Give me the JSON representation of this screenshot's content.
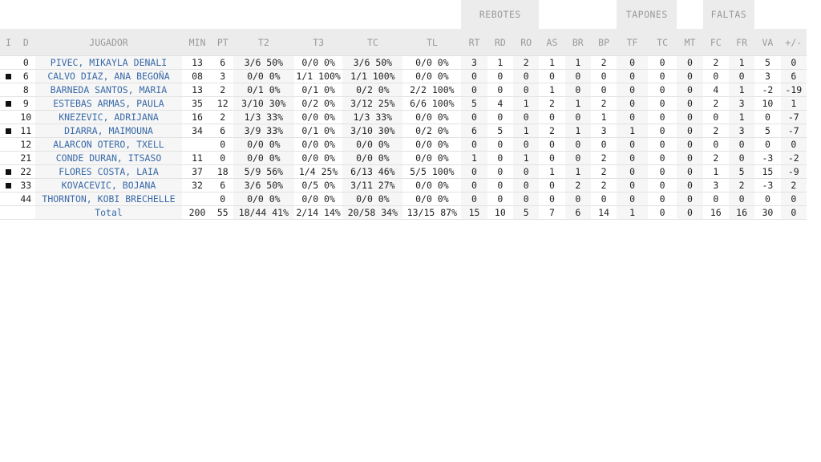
{
  "groups": {
    "rebotes": "REBOTES",
    "tapones": "TAPONES",
    "faltas": "FALTAS"
  },
  "columns": [
    "I",
    "D",
    "JUGADOR",
    "MIN",
    "PT",
    "T2",
    "T3",
    "TC",
    "TL",
    "RT",
    "RD",
    "RO",
    "AS",
    "BR",
    "BP",
    "TF",
    "TC",
    "MT",
    "FC",
    "FR",
    "VA",
    "+/-"
  ],
  "rows": [
    {
      "starter": false,
      "dorsal": "0",
      "name": "PIVEC, MIKAYLA DENALI",
      "min": "13",
      "pt": "6",
      "t2": "3/6 50%",
      "t3": "0/0 0%",
      "tc": "3/6 50%",
      "tl": "0/0 0%",
      "rt": "3",
      "rd": "1",
      "ro": "2",
      "as": "1",
      "br": "1",
      "bp": "2",
      "tf": "0",
      "tcb": "0",
      "mt": "0",
      "fc": "2",
      "fr": "1",
      "va": "5",
      "pm": "0"
    },
    {
      "starter": true,
      "dorsal": "6",
      "name": "CALVO DIAZ, ANA BEGOÑA",
      "min": "08",
      "pt": "3",
      "t2": "0/0 0%",
      "t3": "1/1 100%",
      "tc": "1/1 100%",
      "tl": "0/0 0%",
      "rt": "0",
      "rd": "0",
      "ro": "0",
      "as": "0",
      "br": "0",
      "bp": "0",
      "tf": "0",
      "tcb": "0",
      "mt": "0",
      "fc": "0",
      "fr": "0",
      "va": "3",
      "pm": "6"
    },
    {
      "starter": false,
      "dorsal": "8",
      "name": "BARNEDA SANTOS, MARIA",
      "min": "13",
      "pt": "2",
      "t2": "0/1 0%",
      "t3": "0/1 0%",
      "tc": "0/2 0%",
      "tl": "2/2 100%",
      "rt": "0",
      "rd": "0",
      "ro": "0",
      "as": "1",
      "br": "0",
      "bp": "0",
      "tf": "0",
      "tcb": "0",
      "mt": "0",
      "fc": "4",
      "fr": "1",
      "va": "-2",
      "pm": "-19"
    },
    {
      "starter": true,
      "dorsal": "9",
      "name": "ESTEBAS ARMAS, PAULA",
      "min": "35",
      "pt": "12",
      "t2": "3/10 30%",
      "t3": "0/2 0%",
      "tc": "3/12 25%",
      "tl": "6/6 100%",
      "rt": "5",
      "rd": "4",
      "ro": "1",
      "as": "2",
      "br": "1",
      "bp": "2",
      "tf": "0",
      "tcb": "0",
      "mt": "0",
      "fc": "2",
      "fr": "3",
      "va": "10",
      "pm": "1"
    },
    {
      "starter": false,
      "dorsal": "10",
      "name": "KNEZEVIC, ADRIJANA",
      "min": "16",
      "pt": "2",
      "t2": "1/3 33%",
      "t3": "0/0 0%",
      "tc": "1/3 33%",
      "tl": "0/0 0%",
      "rt": "0",
      "rd": "0",
      "ro": "0",
      "as": "0",
      "br": "0",
      "bp": "1",
      "tf": "0",
      "tcb": "0",
      "mt": "0",
      "fc": "0",
      "fr": "1",
      "va": "0",
      "pm": "-7"
    },
    {
      "starter": true,
      "dorsal": "11",
      "name": "DIARRA, MAIMOUNA",
      "min": "34",
      "pt": "6",
      "t2": "3/9 33%",
      "t3": "0/1 0%",
      "tc": "3/10 30%",
      "tl": "0/2 0%",
      "rt": "6",
      "rd": "5",
      "ro": "1",
      "as": "2",
      "br": "1",
      "bp": "3",
      "tf": "1",
      "tcb": "0",
      "mt": "0",
      "fc": "2",
      "fr": "3",
      "va": "5",
      "pm": "-7"
    },
    {
      "starter": false,
      "dorsal": "12",
      "name": "ALARCON OTERO, TXELL",
      "min": "",
      "pt": "0",
      "t2": "0/0 0%",
      "t3": "0/0 0%",
      "tc": "0/0 0%",
      "tl": "0/0 0%",
      "rt": "0",
      "rd": "0",
      "ro": "0",
      "as": "0",
      "br": "0",
      "bp": "0",
      "tf": "0",
      "tcb": "0",
      "mt": "0",
      "fc": "0",
      "fr": "0",
      "va": "0",
      "pm": "0"
    },
    {
      "starter": false,
      "dorsal": "21",
      "name": "CONDE DURAN, ITSASO",
      "min": "11",
      "pt": "0",
      "t2": "0/0 0%",
      "t3": "0/0 0%",
      "tc": "0/0 0%",
      "tl": "0/0 0%",
      "rt": "1",
      "rd": "0",
      "ro": "1",
      "as": "0",
      "br": "0",
      "bp": "2",
      "tf": "0",
      "tcb": "0",
      "mt": "0",
      "fc": "2",
      "fr": "0",
      "va": "-3",
      "pm": "-2"
    },
    {
      "starter": true,
      "dorsal": "22",
      "name": "FLORES COSTA, LAIA",
      "min": "37",
      "pt": "18",
      "t2": "5/9 56%",
      "t3": "1/4 25%",
      "tc": "6/13 46%",
      "tl": "5/5 100%",
      "rt": "0",
      "rd": "0",
      "ro": "0",
      "as": "1",
      "br": "1",
      "bp": "2",
      "tf": "0",
      "tcb": "0",
      "mt": "0",
      "fc": "1",
      "fr": "5",
      "va": "15",
      "pm": "-9"
    },
    {
      "starter": true,
      "dorsal": "33",
      "name": "KOVACEVIC, BOJANA",
      "min": "32",
      "pt": "6",
      "t2": "3/6 50%",
      "t3": "0/5 0%",
      "tc": "3/11 27%",
      "tl": "0/0 0%",
      "rt": "0",
      "rd": "0",
      "ro": "0",
      "as": "0",
      "br": "2",
      "bp": "2",
      "tf": "0",
      "tcb": "0",
      "mt": "0",
      "fc": "3",
      "fr": "2",
      "va": "-3",
      "pm": "2"
    },
    {
      "starter": false,
      "dorsal": "44",
      "name": "THORNTON, KOBI BRECHELLE",
      "min": "",
      "pt": "0",
      "t2": "0/0 0%",
      "t3": "0/0 0%",
      "tc": "0/0 0%",
      "tl": "0/0 0%",
      "rt": "0",
      "rd": "0",
      "ro": "0",
      "as": "0",
      "br": "0",
      "bp": "0",
      "tf": "0",
      "tcb": "0",
      "mt": "0",
      "fc": "0",
      "fr": "0",
      "va": "0",
      "pm": "0"
    }
  ],
  "total": {
    "label": "Total",
    "min": "200",
    "pt": "55",
    "t2": "18/44 41%",
    "t3": "2/14 14%",
    "tc": "20/58 34%",
    "tl": "13/15 87%",
    "rt": "15",
    "rd": "10",
    "ro": "5",
    "as": "7",
    "br": "6",
    "bp": "14",
    "tf": "1",
    "tcb": "0",
    "mt": "0",
    "fc": "16",
    "fr": "16",
    "va": "30",
    "pm": "0"
  }
}
